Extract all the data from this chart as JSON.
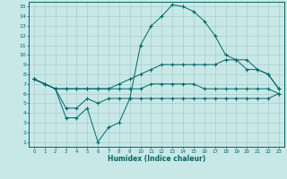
{
  "xlabel": "Humidex (Indice chaleur)",
  "bg_color": "#c8e8e8",
  "grid_color": "#a8cccc",
  "line_color": "#006666",
  "xlim": [
    -0.5,
    23.5
  ],
  "ylim": [
    0.5,
    15.5
  ],
  "xticks": [
    0,
    1,
    2,
    3,
    4,
    5,
    6,
    7,
    8,
    9,
    10,
    11,
    12,
    13,
    14,
    15,
    16,
    17,
    18,
    19,
    20,
    21,
    22,
    23
  ],
  "yticks": [
    1,
    2,
    3,
    4,
    5,
    6,
    7,
    8,
    9,
    10,
    11,
    12,
    13,
    14,
    15
  ],
  "line1_x": [
    0,
    1,
    2,
    3,
    4,
    5,
    6,
    7,
    8,
    9,
    10,
    11,
    12,
    13,
    14,
    15,
    16,
    17,
    18,
    19,
    20,
    21,
    22,
    23
  ],
  "line1_y": [
    7.5,
    7.0,
    6.5,
    3.5,
    3.5,
    4.5,
    1.0,
    2.5,
    3.0,
    5.5,
    11.0,
    13.0,
    14.0,
    15.2,
    15.0,
    14.5,
    13.5,
    12.0,
    10.0,
    9.5,
    8.5,
    8.5,
    8.0,
    6.5
  ],
  "line2_x": [
    0,
    1,
    2,
    3,
    4,
    5,
    6,
    7,
    8,
    9,
    10,
    11,
    12,
    13,
    14,
    15,
    16,
    17,
    18,
    19,
    20,
    21,
    22,
    23
  ],
  "line2_y": [
    7.5,
    7.0,
    6.5,
    6.5,
    6.5,
    6.5,
    6.5,
    6.5,
    7.0,
    7.5,
    8.0,
    8.5,
    9.0,
    9.0,
    9.0,
    9.0,
    9.0,
    9.0,
    9.5,
    9.5,
    9.5,
    8.5,
    8.0,
    6.5
  ],
  "line3_x": [
    0,
    1,
    2,
    3,
    4,
    5,
    6,
    7,
    8,
    9,
    10,
    11,
    12,
    13,
    14,
    15,
    16,
    17,
    18,
    19,
    20,
    21,
    22,
    23
  ],
  "line3_y": [
    7.5,
    7.0,
    6.5,
    6.5,
    6.5,
    6.5,
    6.5,
    6.5,
    6.5,
    6.5,
    6.5,
    7.0,
    7.0,
    7.0,
    7.0,
    7.0,
    6.5,
    6.5,
    6.5,
    6.5,
    6.5,
    6.5,
    6.5,
    6.0
  ],
  "line4_x": [
    0,
    1,
    2,
    3,
    4,
    5,
    6,
    7,
    8,
    9,
    10,
    11,
    12,
    13,
    14,
    15,
    16,
    17,
    18,
    19,
    20,
    21,
    22,
    23
  ],
  "line4_y": [
    7.5,
    7.0,
    6.5,
    4.5,
    4.5,
    5.5,
    5.0,
    5.5,
    5.5,
    5.5,
    5.5,
    5.5,
    5.5,
    5.5,
    5.5,
    5.5,
    5.5,
    5.5,
    5.5,
    5.5,
    5.5,
    5.5,
    5.5,
    6.0
  ]
}
